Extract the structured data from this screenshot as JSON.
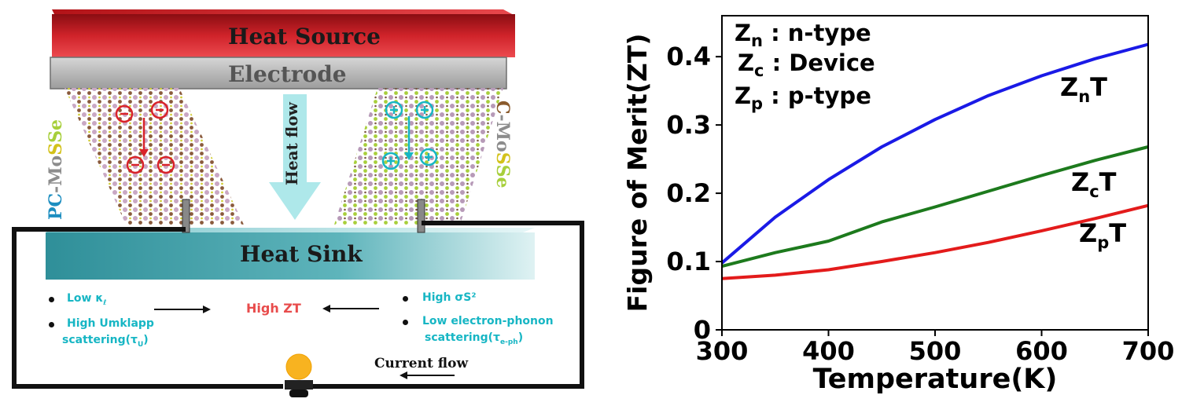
{
  "diagram": {
    "heat_source": "Heat Source",
    "electrode": "Electrode",
    "heat_flow": "Heat flow",
    "heat_sink": "Heat Sink",
    "left_material_prefix": "PC",
    "left_material_mo": "-Mo",
    "left_material_s": "S",
    "left_material_se": "Se",
    "right_material_prefix": "C",
    "right_material_mo": "-Mo",
    "right_material_s": "S",
    "right_material_se": "Se",
    "left_bullets": {
      "low_kappa": "Low κ",
      "low_kappa_sub": "ℓ",
      "high_umklapp": "High Umklapp",
      "umklapp_scattering": "scattering(τ",
      "umklapp_sub": "U",
      "close": ")"
    },
    "center_label": "High ZT",
    "right_bullets": {
      "high_sigma": "High σS²",
      "low_electron_phonon": "Low electron-phonon",
      "ep_scattering": "scattering(τ",
      "ep_sub": "e-ph",
      "close": ")"
    },
    "current_flow": "Current flow",
    "colors": {
      "heat_source": "#c0161c",
      "electrode": "#b4b4b4",
      "heat_sink": "#3c9ea6",
      "arrow_flow": "#aee8ea",
      "accent_text": "#17b6c4",
      "high_zt": "#e84c4c",
      "bulb": "#f8b320"
    }
  },
  "chart_data": {
    "type": "line",
    "xlabel": "Temperature(K)",
    "ylabel": "Figure of Merit(ZT)",
    "xlim": [
      300,
      700
    ],
    "ylim": [
      0,
      0.46
    ],
    "xticks": [
      300,
      400,
      500,
      600,
      700
    ],
    "yticks": [
      0,
      0.1,
      0.2,
      0.3,
      0.4
    ],
    "ytick_labels": [
      "0",
      "0.1",
      "0.2",
      "0.3",
      "0.4"
    ],
    "grid": false,
    "legend_lines": [
      {
        "sym": "Z",
        "sub": "n",
        "text": " : n-type"
      },
      {
        "sym": "Z",
        "sub": "c",
        "text": " : Device"
      },
      {
        "sym": "Z",
        "sub": "p",
        "text": " : p-type"
      }
    ],
    "series": [
      {
        "key": "n",
        "label_main": "Z",
        "label_sub": "n",
        "label_tail": "T",
        "color": "#1a1ae6",
        "x": [
          300,
          350,
          400,
          450,
          500,
          550,
          600,
          650,
          700
        ],
        "y": [
          0.098,
          0.165,
          0.22,
          0.268,
          0.308,
          0.343,
          0.372,
          0.397,
          0.418
        ]
      },
      {
        "key": "c",
        "label_main": "Z",
        "label_sub": "c",
        "label_tail": "T",
        "color": "#1d7a1d",
        "x": [
          300,
          350,
          400,
          450,
          500,
          550,
          600,
          650,
          700
        ],
        "y": [
          0.093,
          0.113,
          0.13,
          0.158,
          0.18,
          0.203,
          0.226,
          0.248,
          0.268
        ]
      },
      {
        "key": "p",
        "label_main": "Z",
        "label_sub": "p",
        "label_tail": "T",
        "color": "#e31b1b",
        "x": [
          300,
          350,
          400,
          450,
          500,
          550,
          600,
          650,
          700
        ],
        "y": [
          0.075,
          0.08,
          0.088,
          0.1,
          0.113,
          0.128,
          0.145,
          0.163,
          0.182
        ]
      }
    ]
  }
}
